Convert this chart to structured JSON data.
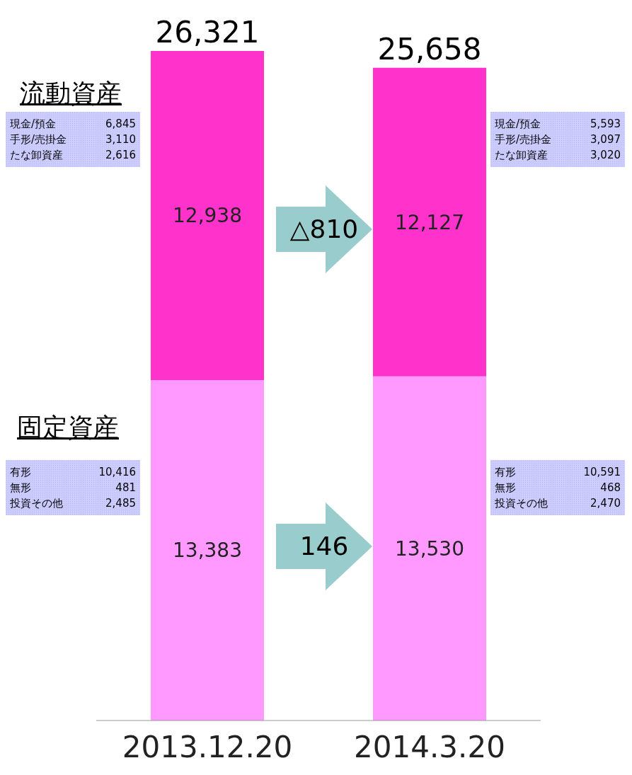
{
  "chart_data": {
    "type": "bar",
    "stacked": true,
    "categories": [
      "2013.12.20",
      "2014.3.20"
    ],
    "series": [
      {
        "name": "固定資産",
        "color": "#ff99ff",
        "values": [
          13383,
          13530
        ],
        "value_labels": [
          "13,383",
          "13,530"
        ]
      },
      {
        "name": "流動資産",
        "color": "#ff33cc",
        "values": [
          12938,
          12127
        ],
        "value_labels": [
          "12,938",
          "12,127"
        ]
      }
    ],
    "totals": [
      "26,321",
      "25,658"
    ],
    "annotations": [
      "現金/預金 6,845",
      "手形/売掛金 3,110",
      "たな卸資産 2,616",
      "現金/預金 5,593",
      "手形/売掛金 3,097",
      "たな卸資産 3,020",
      "有形 10,416",
      "無形 481",
      "投資その他 2,485",
      "有形 10,591",
      "無形 468",
      "投資その他 2,470",
      "△810",
      "146"
    ]
  }
}
